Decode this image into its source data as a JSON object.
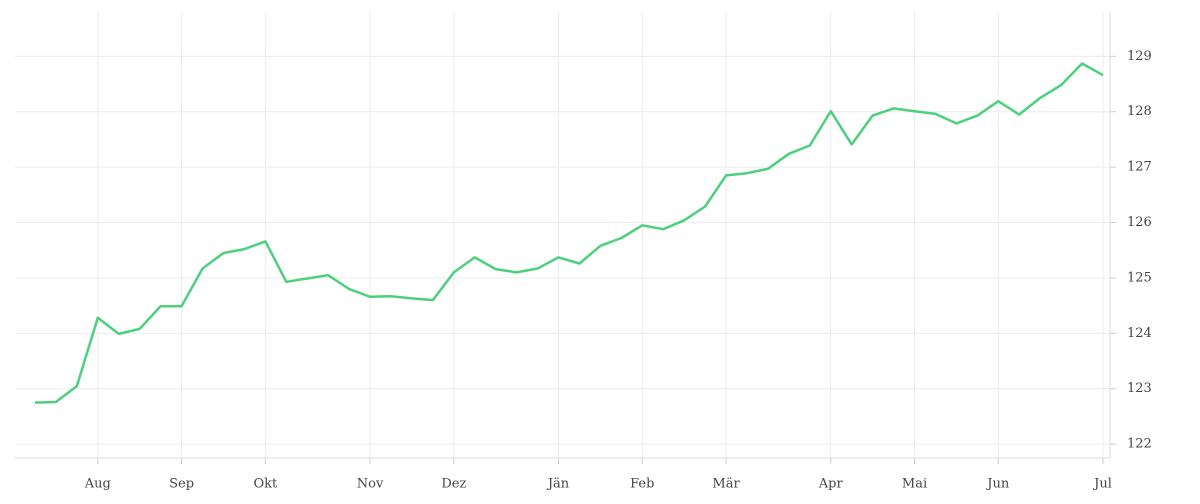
{
  "chart_data": {
    "type": "line",
    "categories": [
      null,
      null,
      null,
      "Aug",
      null,
      null,
      null,
      "Sep",
      null,
      null,
      null,
      "Okt",
      null,
      null,
      null,
      null,
      "Nov",
      null,
      null,
      null,
      "Dez",
      null,
      null,
      null,
      null,
      "Jän",
      null,
      null,
      null,
      "Feb",
      null,
      null,
      null,
      "Mär",
      null,
      null,
      null,
      null,
      "Apr",
      null,
      null,
      null,
      "Mai",
      null,
      null,
      null,
      "Jun",
      null,
      null,
      null,
      null,
      "Jul"
    ],
    "series": [
      {
        "color": "#4cd07d",
        "values": [
          122.75,
          122.76,
          123.05,
          124.28,
          123.99,
          124.08,
          124.49,
          124.49,
          125.17,
          125.45,
          125.52,
          125.66,
          124.93,
          124.99,
          125.05,
          124.8,
          124.66,
          124.67,
          124.63,
          124.6,
          125.1,
          125.37,
          125.16,
          125.1,
          125.17,
          125.37,
          125.26,
          125.58,
          125.72,
          125.95,
          125.88,
          126.04,
          126.29,
          126.85,
          126.89,
          126.97,
          127.24,
          127.39,
          128.01,
          127.41,
          127.93,
          128.06,
          128.01,
          127.96,
          127.79,
          127.93,
          128.19,
          127.95,
          128.25,
          128.48,
          128.87,
          128.66
        ]
      }
    ],
    "ylim": [
      121.75,
      129.8
    ],
    "yticks": [
      122,
      123,
      124,
      125,
      126,
      127,
      128,
      129
    ],
    "grid": true
  }
}
